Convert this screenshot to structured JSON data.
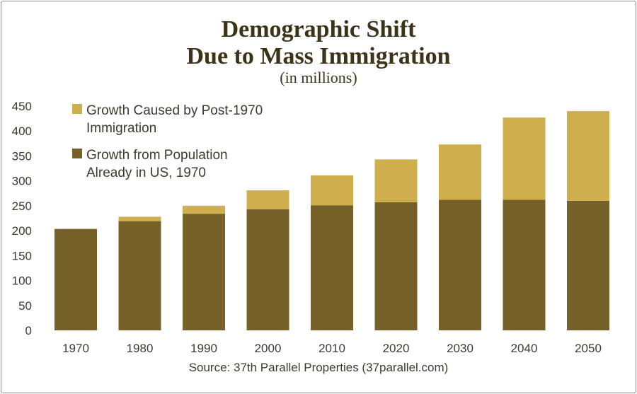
{
  "chart_data": {
    "type": "bar",
    "stacked": true,
    "title_line1": "Demographic Shift",
    "title_line2": "Due to Mass Immigration",
    "subtitle": "(in millions)",
    "categories": [
      "1970",
      "1980",
      "1990",
      "2000",
      "2010",
      "2020",
      "2030",
      "2040",
      "2050"
    ],
    "ylim": [
      0,
      450
    ],
    "yticks": [
      0,
      50,
      100,
      150,
      200,
      250,
      300,
      350,
      400,
      450
    ],
    "series": [
      {
        "name": "Growth from Population Already in US, 1970",
        "legend_lines": [
          "Growth from Population",
          "Already in US, 1970"
        ],
        "color": "#766229",
        "values": [
          203,
          219,
          234,
          243,
          251,
          257,
          262,
          262,
          260
        ]
      },
      {
        "name": "Growth Caused by Post-1970 Immigration",
        "legend_lines": [
          "Growth Caused by Post-1970",
          "Immigration"
        ],
        "color": "#cfae4d",
        "values": [
          1,
          9,
          16,
          38,
          60,
          86,
          111,
          165,
          180
        ]
      }
    ],
    "legend_position": "top-left",
    "grid": false,
    "source": "Source: 37th Parallel Properties (37parallel.com)"
  }
}
